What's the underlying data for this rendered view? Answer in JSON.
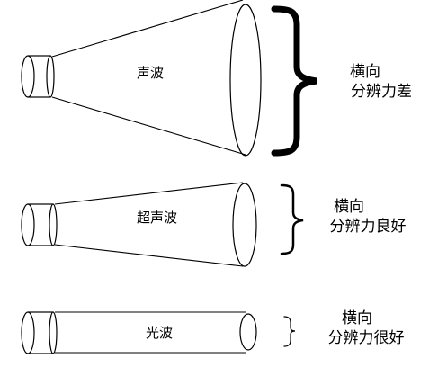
{
  "rows": [
    {
      "wave_label": "声波",
      "desc_line1": "横向",
      "desc_line2": "分辨力差"
    },
    {
      "wave_label": "超声波",
      "desc_line1": "横向",
      "desc_line2": "分辨力良好"
    },
    {
      "wave_label": "光波",
      "desc_line1": "横向",
      "desc_line2": "分辨力很好"
    }
  ]
}
